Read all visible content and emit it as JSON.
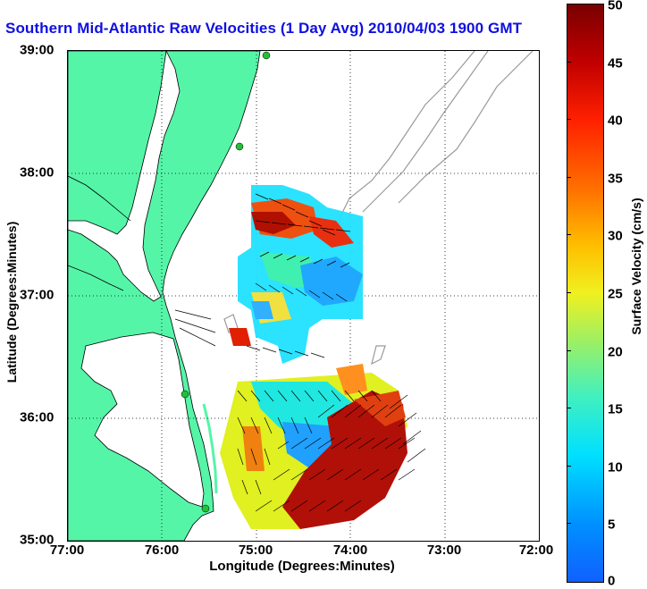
{
  "title": "Southern Mid-Atlantic Raw Velocities (1 Day Avg) 2010/04/03 1900 GMT",
  "axes": {
    "x_label": "Longitude (Degrees:Minutes)",
    "y_label": "Latitude (Degrees:Minutes)",
    "x_ticks": [
      "77:00",
      "76:00",
      "75:00",
      "74:00",
      "73:00",
      "72:00"
    ],
    "y_ticks": [
      "39:00",
      "38:00",
      "37:00",
      "36:00",
      "35:00"
    ]
  },
  "colorbar": {
    "label": "Surface Velocity (cm/s)",
    "ticks": [
      "50",
      "45",
      "40",
      "35",
      "30",
      "25",
      "20",
      "15",
      "10",
      "5",
      "0"
    ],
    "min": 0,
    "max": 50,
    "colormap": "jet"
  },
  "colors": {
    "title": "#1010e0",
    "land": "#55f5a8",
    "coastline": "#000000",
    "bathymetry": "#9a9a9a",
    "station": "#22c033"
  }
}
